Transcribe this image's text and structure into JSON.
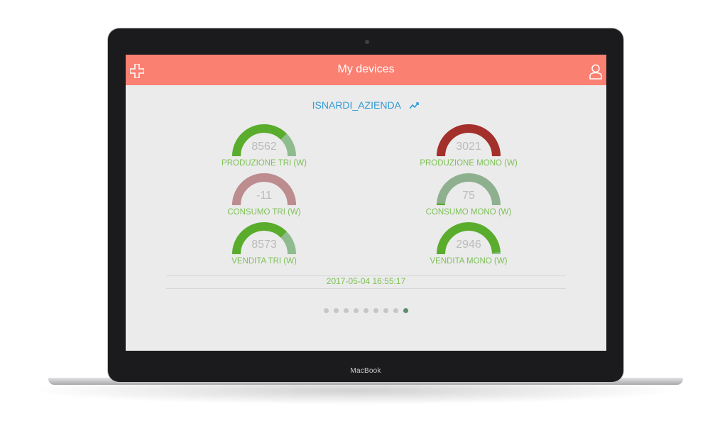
{
  "laptop": {
    "brand": "MacBook"
  },
  "header": {
    "title": "My devices",
    "add_icon": "plus-icon",
    "profile_icon": "user-icon"
  },
  "device": {
    "name": "ISNARDI_AZIENDA",
    "chart_icon": "trend-line-icon"
  },
  "gauges": [
    {
      "value": "8562",
      "label": "PRODUZIONE TRI (W)",
      "fill": 0.75,
      "color": "#5aad2c",
      "track": "#8fbc8f"
    },
    {
      "value": "3021",
      "label": "PRODUZIONE MONO (W)",
      "fill": 1.0,
      "color": "#a4302b",
      "track": "#a4302b"
    },
    {
      "value": "-11",
      "label": "CONSUMO TRI (W)",
      "fill": 1.0,
      "color": "#bc8c8f",
      "track": "#bc8c8f"
    },
    {
      "value": "75",
      "label": "CONSUMO MONO (W)",
      "fill": 0.02,
      "color": "#5aad2c",
      "track": "#8fb08f"
    },
    {
      "value": "8573",
      "label": "VENDITA TRI (W)",
      "fill": 0.75,
      "color": "#5aad2c",
      "track": "#8fbc8f"
    },
    {
      "value": "2946",
      "label": "VENDITA MONO (W)",
      "fill": 0.98,
      "color": "#5aad2c",
      "track": "#8fbc8f"
    }
  ],
  "timestamp": "2017-05-04 16:55:17",
  "pagination": {
    "count": 9,
    "active": 9
  }
}
